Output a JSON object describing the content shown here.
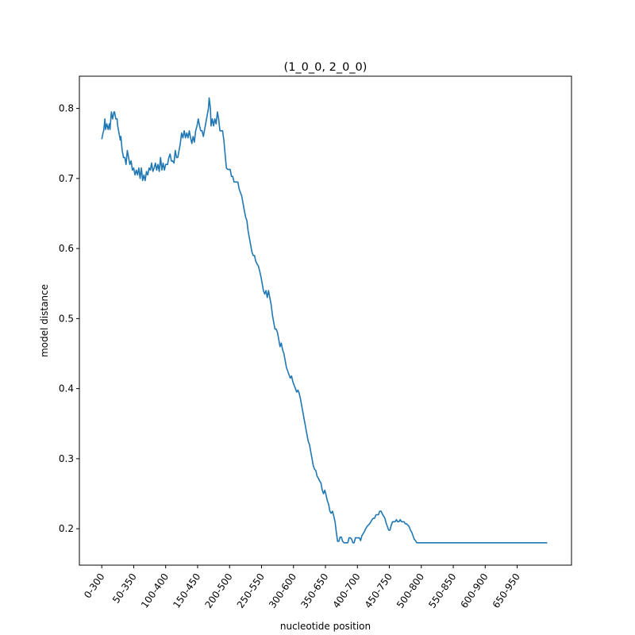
{
  "chart_data": {
    "type": "line",
    "title": "(1_0_0, 2_0_0)",
    "xlabel": "nucleotide position",
    "ylabel": "model distance",
    "xlim": [
      -35,
      735
    ],
    "ylim": [
      0.148,
      0.846
    ],
    "grid": false,
    "x_tick_values": [
      0,
      50,
      100,
      150,
      200,
      250,
      300,
      350,
      400,
      450,
      500,
      550,
      600,
      650
    ],
    "x_tick_labels": [
      "0-300",
      "50-350",
      "100-400",
      "150-450",
      "200-500",
      "250-550",
      "300-600",
      "350-650",
      "400-700",
      "450-750",
      "500-800",
      "550-850",
      "600-900",
      "650-950"
    ],
    "y_ticks": [
      0.2,
      0.3,
      0.4,
      0.5,
      0.6,
      0.7,
      0.8
    ],
    "y_tick_labels": [
      "0.2",
      "0.3",
      "0.4",
      "0.5",
      "0.6",
      "0.7",
      "0.8"
    ],
    "series": [
      {
        "color": "#1f77b4",
        "points": [
          [
            0,
            0.756
          ],
          [
            2,
            0.765
          ],
          [
            3,
            0.768
          ],
          [
            5,
            0.785
          ],
          [
            6,
            0.77
          ],
          [
            8,
            0.778
          ],
          [
            10,
            0.77
          ],
          [
            12,
            0.778
          ],
          [
            13,
            0.77
          ],
          [
            15,
            0.795
          ],
          [
            17,
            0.785
          ],
          [
            19,
            0.795
          ],
          [
            20,
            0.795
          ],
          [
            22,
            0.785
          ],
          [
            24,
            0.785
          ],
          [
            25,
            0.775
          ],
          [
            27,
            0.765
          ],
          [
            29,
            0.755
          ],
          [
            30,
            0.76
          ],
          [
            32,
            0.74
          ],
          [
            34,
            0.73
          ],
          [
            36,
            0.73
          ],
          [
            38,
            0.72
          ],
          [
            40,
            0.74
          ],
          [
            42,
            0.73
          ],
          [
            44,
            0.72
          ],
          [
            46,
            0.725
          ],
          [
            48,
            0.712
          ],
          [
            50,
            0.715
          ],
          [
            52,
            0.705
          ],
          [
            54,
            0.712
          ],
          [
            56,
            0.705
          ],
          [
            58,
            0.715
          ],
          [
            60,
            0.7
          ],
          [
            62,
            0.715
          ],
          [
            64,
            0.697
          ],
          [
            66,
            0.705
          ],
          [
            68,
            0.697
          ],
          [
            70,
            0.71
          ],
          [
            72,
            0.705
          ],
          [
            74,
            0.715
          ],
          [
            76,
            0.712
          ],
          [
            78,
            0.722
          ],
          [
            80,
            0.71
          ],
          [
            82,
            0.715
          ],
          [
            84,
            0.722
          ],
          [
            86,
            0.712
          ],
          [
            88,
            0.72
          ],
          [
            90,
            0.71
          ],
          [
            92,
            0.73
          ],
          [
            94,
            0.712
          ],
          [
            96,
            0.722
          ],
          [
            98,
            0.712
          ],
          [
            100,
            0.72
          ],
          [
            103,
            0.72
          ],
          [
            105,
            0.73
          ],
          [
            107,
            0.735
          ],
          [
            109,
            0.725
          ],
          [
            111,
            0.725
          ],
          [
            113,
            0.722
          ],
          [
            115,
            0.74
          ],
          [
            117,
            0.73
          ],
          [
            119,
            0.73
          ],
          [
            121,
            0.74
          ],
          [
            123,
            0.75
          ],
          [
            125,
            0.765
          ],
          [
            127,
            0.758
          ],
          [
            129,
            0.768
          ],
          [
            131,
            0.758
          ],
          [
            133,
            0.765
          ],
          [
            135,
            0.758
          ],
          [
            137,
            0.768
          ],
          [
            139,
            0.758
          ],
          [
            141,
            0.75
          ],
          [
            143,
            0.76
          ],
          [
            145,
            0.752
          ],
          [
            147,
            0.768
          ],
          [
            149,
            0.775
          ],
          [
            151,
            0.785
          ],
          [
            153,
            0.775
          ],
          [
            155,
            0.768
          ],
          [
            157,
            0.768
          ],
          [
            159,
            0.76
          ],
          [
            161,
            0.77
          ],
          [
            163,
            0.78
          ],
          [
            165,
            0.79
          ],
          [
            167,
            0.8
          ],
          [
            168,
            0.815
          ],
          [
            170,
            0.8
          ],
          [
            171,
            0.775
          ],
          [
            173,
            0.785
          ],
          [
            175,
            0.775
          ],
          [
            177,
            0.785
          ],
          [
            179,
            0.778
          ],
          [
            181,
            0.795
          ],
          [
            183,
            0.785
          ],
          [
            185,
            0.768
          ],
          [
            187,
            0.768
          ],
          [
            189,
            0.768
          ],
          [
            191,
            0.755
          ],
          [
            193,
            0.735
          ],
          [
            195,
            0.715
          ],
          [
            197,
            0.713
          ],
          [
            199,
            0.713
          ],
          [
            201,
            0.713
          ],
          [
            203,
            0.703
          ],
          [
            205,
            0.703
          ],
          [
            207,
            0.695
          ],
          [
            209,
            0.695
          ],
          [
            211,
            0.695
          ],
          [
            213,
            0.695
          ],
          [
            215,
            0.685
          ],
          [
            217,
            0.68
          ],
          [
            219,
            0.675
          ],
          [
            221,
            0.665
          ],
          [
            223,
            0.655
          ],
          [
            225,
            0.645
          ],
          [
            227,
            0.64
          ],
          [
            229,
            0.625
          ],
          [
            231,
            0.615
          ],
          [
            233,
            0.605
          ],
          [
            235,
            0.595
          ],
          [
            237,
            0.59
          ],
          [
            239,
            0.59
          ],
          [
            241,
            0.582
          ],
          [
            243,
            0.578
          ],
          [
            245,
            0.575
          ],
          [
            247,
            0.568
          ],
          [
            249,
            0.56
          ],
          [
            251,
            0.55
          ],
          [
            253,
            0.54
          ],
          [
            255,
            0.535
          ],
          [
            257,
            0.54
          ],
          [
            259,
            0.53
          ],
          [
            261,
            0.54
          ],
          [
            263,
            0.53
          ],
          [
            265,
            0.52
          ],
          [
            267,
            0.505
          ],
          [
            269,
            0.495
          ],
          [
            271,
            0.485
          ],
          [
            273,
            0.485
          ],
          [
            275,
            0.48
          ],
          [
            277,
            0.47
          ],
          [
            279,
            0.46
          ],
          [
            281,
            0.465
          ],
          [
            283,
            0.455
          ],
          [
            285,
            0.45
          ],
          [
            287,
            0.44
          ],
          [
            289,
            0.43
          ],
          [
            291,
            0.425
          ],
          [
            293,
            0.42
          ],
          [
            295,
            0.415
          ],
          [
            297,
            0.418
          ],
          [
            299,
            0.41
          ],
          [
            301,
            0.405
          ],
          [
            303,
            0.4
          ],
          [
            305,
            0.395
          ],
          [
            307,
            0.398
          ],
          [
            309,
            0.393
          ],
          [
            311,
            0.385
          ],
          [
            313,
            0.375
          ],
          [
            315,
            0.365
          ],
          [
            317,
            0.355
          ],
          [
            319,
            0.345
          ],
          [
            321,
            0.335
          ],
          [
            323,
            0.325
          ],
          [
            325,
            0.32
          ],
          [
            327,
            0.31
          ],
          [
            329,
            0.3
          ],
          [
            331,
            0.29
          ],
          [
            333,
            0.285
          ],
          [
            335,
            0.283
          ],
          [
            337,
            0.275
          ],
          [
            339,
            0.272
          ],
          [
            341,
            0.268
          ],
          [
            343,
            0.265
          ],
          [
            345,
            0.255
          ],
          [
            347,
            0.25
          ],
          [
            349,
            0.255
          ],
          [
            351,
            0.248
          ],
          [
            353,
            0.24
          ],
          [
            355,
            0.235
          ],
          [
            357,
            0.225
          ],
          [
            359,
            0.222
          ],
          [
            361,
            0.225
          ],
          [
            363,
            0.218
          ],
          [
            365,
            0.21
          ],
          [
            367,
            0.195
          ],
          [
            369,
            0.182
          ],
          [
            371,
            0.182
          ],
          [
            373,
            0.188
          ],
          [
            375,
            0.188
          ],
          [
            377,
            0.182
          ],
          [
            379,
            0.18
          ],
          [
            381,
            0.18
          ],
          [
            383,
            0.18
          ],
          [
            385,
            0.18
          ],
          [
            387,
            0.187
          ],
          [
            389,
            0.187
          ],
          [
            391,
            0.185
          ],
          [
            393,
            0.18
          ],
          [
            395,
            0.18
          ],
          [
            397,
            0.187
          ],
          [
            399,
            0.187
          ],
          [
            401,
            0.187
          ],
          [
            403,
            0.187
          ],
          [
            405,
            0.183
          ],
          [
            407,
            0.19
          ],
          [
            409,
            0.193
          ],
          [
            411,
            0.196
          ],
          [
            413,
            0.2
          ],
          [
            415,
            0.203
          ],
          [
            417,
            0.205
          ],
          [
            419,
            0.207
          ],
          [
            421,
            0.21
          ],
          [
            423,
            0.213
          ],
          [
            425,
            0.215
          ],
          [
            427,
            0.215
          ],
          [
            429,
            0.22
          ],
          [
            431,
            0.22
          ],
          [
            433,
            0.22
          ],
          [
            435,
            0.225
          ],
          [
            437,
            0.225
          ],
          [
            439,
            0.221
          ],
          [
            441,
            0.218
          ],
          [
            443,
            0.215
          ],
          [
            445,
            0.208
          ],
          [
            447,
            0.203
          ],
          [
            449,
            0.198
          ],
          [
            451,
            0.198
          ],
          [
            453,
            0.205
          ],
          [
            455,
            0.21
          ],
          [
            457,
            0.21
          ],
          [
            459,
            0.21
          ],
          [
            461,
            0.213
          ],
          [
            463,
            0.21
          ],
          [
            465,
            0.21
          ],
          [
            467,
            0.213
          ],
          [
            469,
            0.21
          ],
          [
            471,
            0.21
          ],
          [
            473,
            0.21
          ],
          [
            475,
            0.207
          ],
          [
            477,
            0.207
          ],
          [
            479,
            0.205
          ],
          [
            481,
            0.203
          ],
          [
            483,
            0.198
          ],
          [
            485,
            0.195
          ],
          [
            487,
            0.19
          ],
          [
            489,
            0.185
          ],
          [
            491,
            0.183
          ],
          [
            493,
            0.18
          ],
          [
            495,
            0.18
          ],
          [
            697,
            0.18
          ]
        ]
      }
    ]
  }
}
